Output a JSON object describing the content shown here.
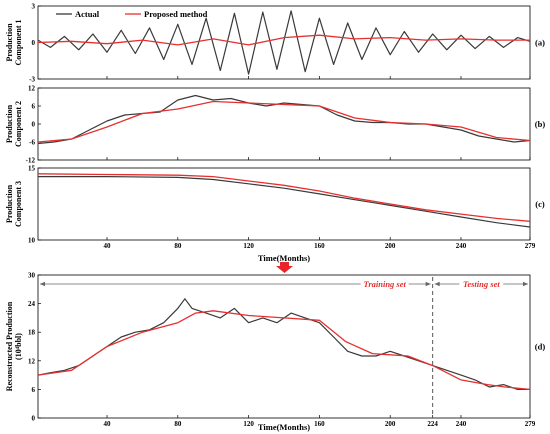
{
  "colors": {
    "actual": "#3a3a3a",
    "proposed": "#e63030",
    "arrow": "#e8262a",
    "annotation": "#e03030"
  },
  "legend": {
    "actual": "Actual",
    "proposed": "Proposed method"
  },
  "top_xlabel": "Time(Months)",
  "bottom_xlabel": "Time(Months)",
  "annotations": {
    "training": "Training set",
    "testing": "Testing set"
  },
  "chart_data": [
    {
      "type": "line",
      "panel_label": "(a)",
      "ylabel": [
        "Production",
        "Component 1"
      ],
      "xlim": [
        1,
        279
      ],
      "ylim": [
        -3,
        3
      ],
      "yticks": [
        -3,
        0,
        3
      ],
      "xticks": [
        40,
        80,
        120,
        160,
        200,
        240,
        279
      ],
      "show_xtick_labels": false,
      "legend": "top-left",
      "series": [
        {
          "name": "Actual",
          "x": [
            1,
            8,
            16,
            24,
            32,
            40,
            48,
            56,
            64,
            72,
            80,
            88,
            96,
            104,
            112,
            120,
            128,
            136,
            144,
            152,
            160,
            168,
            176,
            184,
            192,
            200,
            208,
            216,
            224,
            232,
            240,
            248,
            256,
            264,
            272,
            279
          ],
          "y": [
            0.2,
            -0.4,
            0.5,
            -0.6,
            0.7,
            -0.8,
            1.0,
            -0.9,
            1.2,
            -1.4,
            1.5,
            -1.8,
            2.0,
            -2.3,
            2.4,
            -2.6,
            2.5,
            -2.2,
            2.6,
            -2.4,
            2.0,
            -1.8,
            1.6,
            -1.4,
            1.2,
            -1.0,
            0.9,
            -0.8,
            0.7,
            -0.6,
            0.6,
            -0.5,
            0.5,
            -0.4,
            0.4,
            0.1
          ]
        },
        {
          "name": "Proposed method",
          "x": [
            1,
            20,
            40,
            60,
            80,
            100,
            120,
            140,
            160,
            180,
            200,
            220,
            240,
            260,
            279
          ],
          "y": [
            0,
            0.1,
            -0.1,
            0.2,
            -0.2,
            0.3,
            -0.2,
            0.4,
            0.6,
            0.3,
            0.4,
            0.2,
            0.3,
            0.2,
            0.2
          ]
        }
      ]
    },
    {
      "type": "line",
      "panel_label": "(b)",
      "ylabel": [
        "Production",
        "Component 2"
      ],
      "xlim": [
        1,
        279
      ],
      "ylim": [
        -12,
        12
      ],
      "yticks": [
        -12,
        -6,
        0,
        6,
        12
      ],
      "xticks": [
        40,
        80,
        120,
        160,
        200,
        240,
        279
      ],
      "show_xtick_labels": false,
      "series": [
        {
          "name": "Actual",
          "x": [
            1,
            10,
            20,
            30,
            40,
            50,
            60,
            70,
            80,
            90,
            100,
            110,
            120,
            130,
            140,
            150,
            160,
            170,
            180,
            190,
            200,
            210,
            220,
            230,
            240,
            250,
            260,
            270,
            279
          ],
          "y": [
            -6.5,
            -6,
            -5,
            -2,
            1,
            3,
            3.5,
            4,
            8,
            9.5,
            8,
            8.5,
            7,
            6,
            7,
            6.5,
            6,
            3,
            1,
            0.5,
            0.5,
            0,
            0,
            -1,
            -2,
            -4,
            -5,
            -6,
            -5.5
          ]
        },
        {
          "name": "Proposed method",
          "x": [
            1,
            20,
            40,
            60,
            80,
            100,
            120,
            140,
            160,
            180,
            200,
            220,
            240,
            260,
            279
          ],
          "y": [
            -6,
            -5,
            -1,
            3.5,
            5,
            7.5,
            7,
            6.5,
            6,
            2,
            0.5,
            0,
            -1,
            -4.5,
            -5.5
          ]
        }
      ]
    },
    {
      "type": "line",
      "panel_label": "(c)",
      "ylabel": [
        "Production",
        "Component 3"
      ],
      "xlim": [
        1,
        279
      ],
      "ylim": [
        10,
        15
      ],
      "yticks": [
        10,
        15
      ],
      "xticks": [
        40,
        80,
        120,
        160,
        200,
        240,
        279
      ],
      "show_xtick_labels": true,
      "series": [
        {
          "name": "Actual",
          "x": [
            1,
            40,
            80,
            100,
            120,
            140,
            160,
            180,
            200,
            220,
            240,
            260,
            279
          ],
          "y": [
            14.4,
            14.4,
            14.35,
            14.2,
            13.9,
            13.6,
            13.2,
            12.8,
            12.4,
            12.0,
            11.6,
            11.2,
            10.9
          ]
        },
        {
          "name": "Proposed method",
          "x": [
            1,
            40,
            80,
            100,
            120,
            140,
            160,
            180,
            200,
            220,
            240,
            260,
            279
          ],
          "y": [
            14.6,
            14.55,
            14.5,
            14.4,
            14.1,
            13.8,
            13.4,
            12.9,
            12.5,
            12.1,
            11.8,
            11.5,
            11.3
          ]
        }
      ]
    },
    {
      "type": "line",
      "panel_label": "(d)",
      "ylabel": [
        "Reconstructed Production",
        "(10⁴bbl)"
      ],
      "xlabel": "Time(Months)",
      "xlim": [
        1,
        279
      ],
      "ylim": [
        0,
        30
      ],
      "yticks": [
        0,
        6,
        12,
        18,
        24,
        30
      ],
      "xticks": [
        40,
        80,
        120,
        160,
        200,
        224,
        240,
        279
      ],
      "show_xtick_labels": true,
      "split_month": 224,
      "series": [
        {
          "name": "Actual",
          "x": [
            1,
            8,
            16,
            24,
            32,
            40,
            48,
            56,
            64,
            72,
            80,
            84,
            88,
            96,
            104,
            112,
            120,
            128,
            136,
            144,
            152,
            160,
            168,
            176,
            184,
            192,
            200,
            208,
            216,
            224,
            232,
            240,
            248,
            256,
            264,
            272,
            279
          ],
          "y": [
            9,
            9.5,
            10,
            11,
            13,
            15,
            17,
            18,
            18.5,
            20,
            23,
            25,
            23,
            22,
            21,
            23,
            20,
            21,
            20,
            22,
            21,
            20,
            17,
            14,
            13,
            13,
            14,
            13,
            12,
            11,
            10,
            9,
            8,
            6.5,
            7,
            6,
            6
          ]
        },
        {
          "name": "Proposed method",
          "x": [
            1,
            20,
            40,
            60,
            80,
            90,
            100,
            120,
            140,
            160,
            175,
            190,
            210,
            224,
            240,
            255,
            265,
            279
          ],
          "y": [
            9,
            10,
            15,
            18,
            20,
            22,
            22.5,
            21.5,
            21,
            20.5,
            16,
            13.5,
            13,
            11,
            8,
            7,
            6.5,
            6
          ]
        }
      ]
    }
  ]
}
